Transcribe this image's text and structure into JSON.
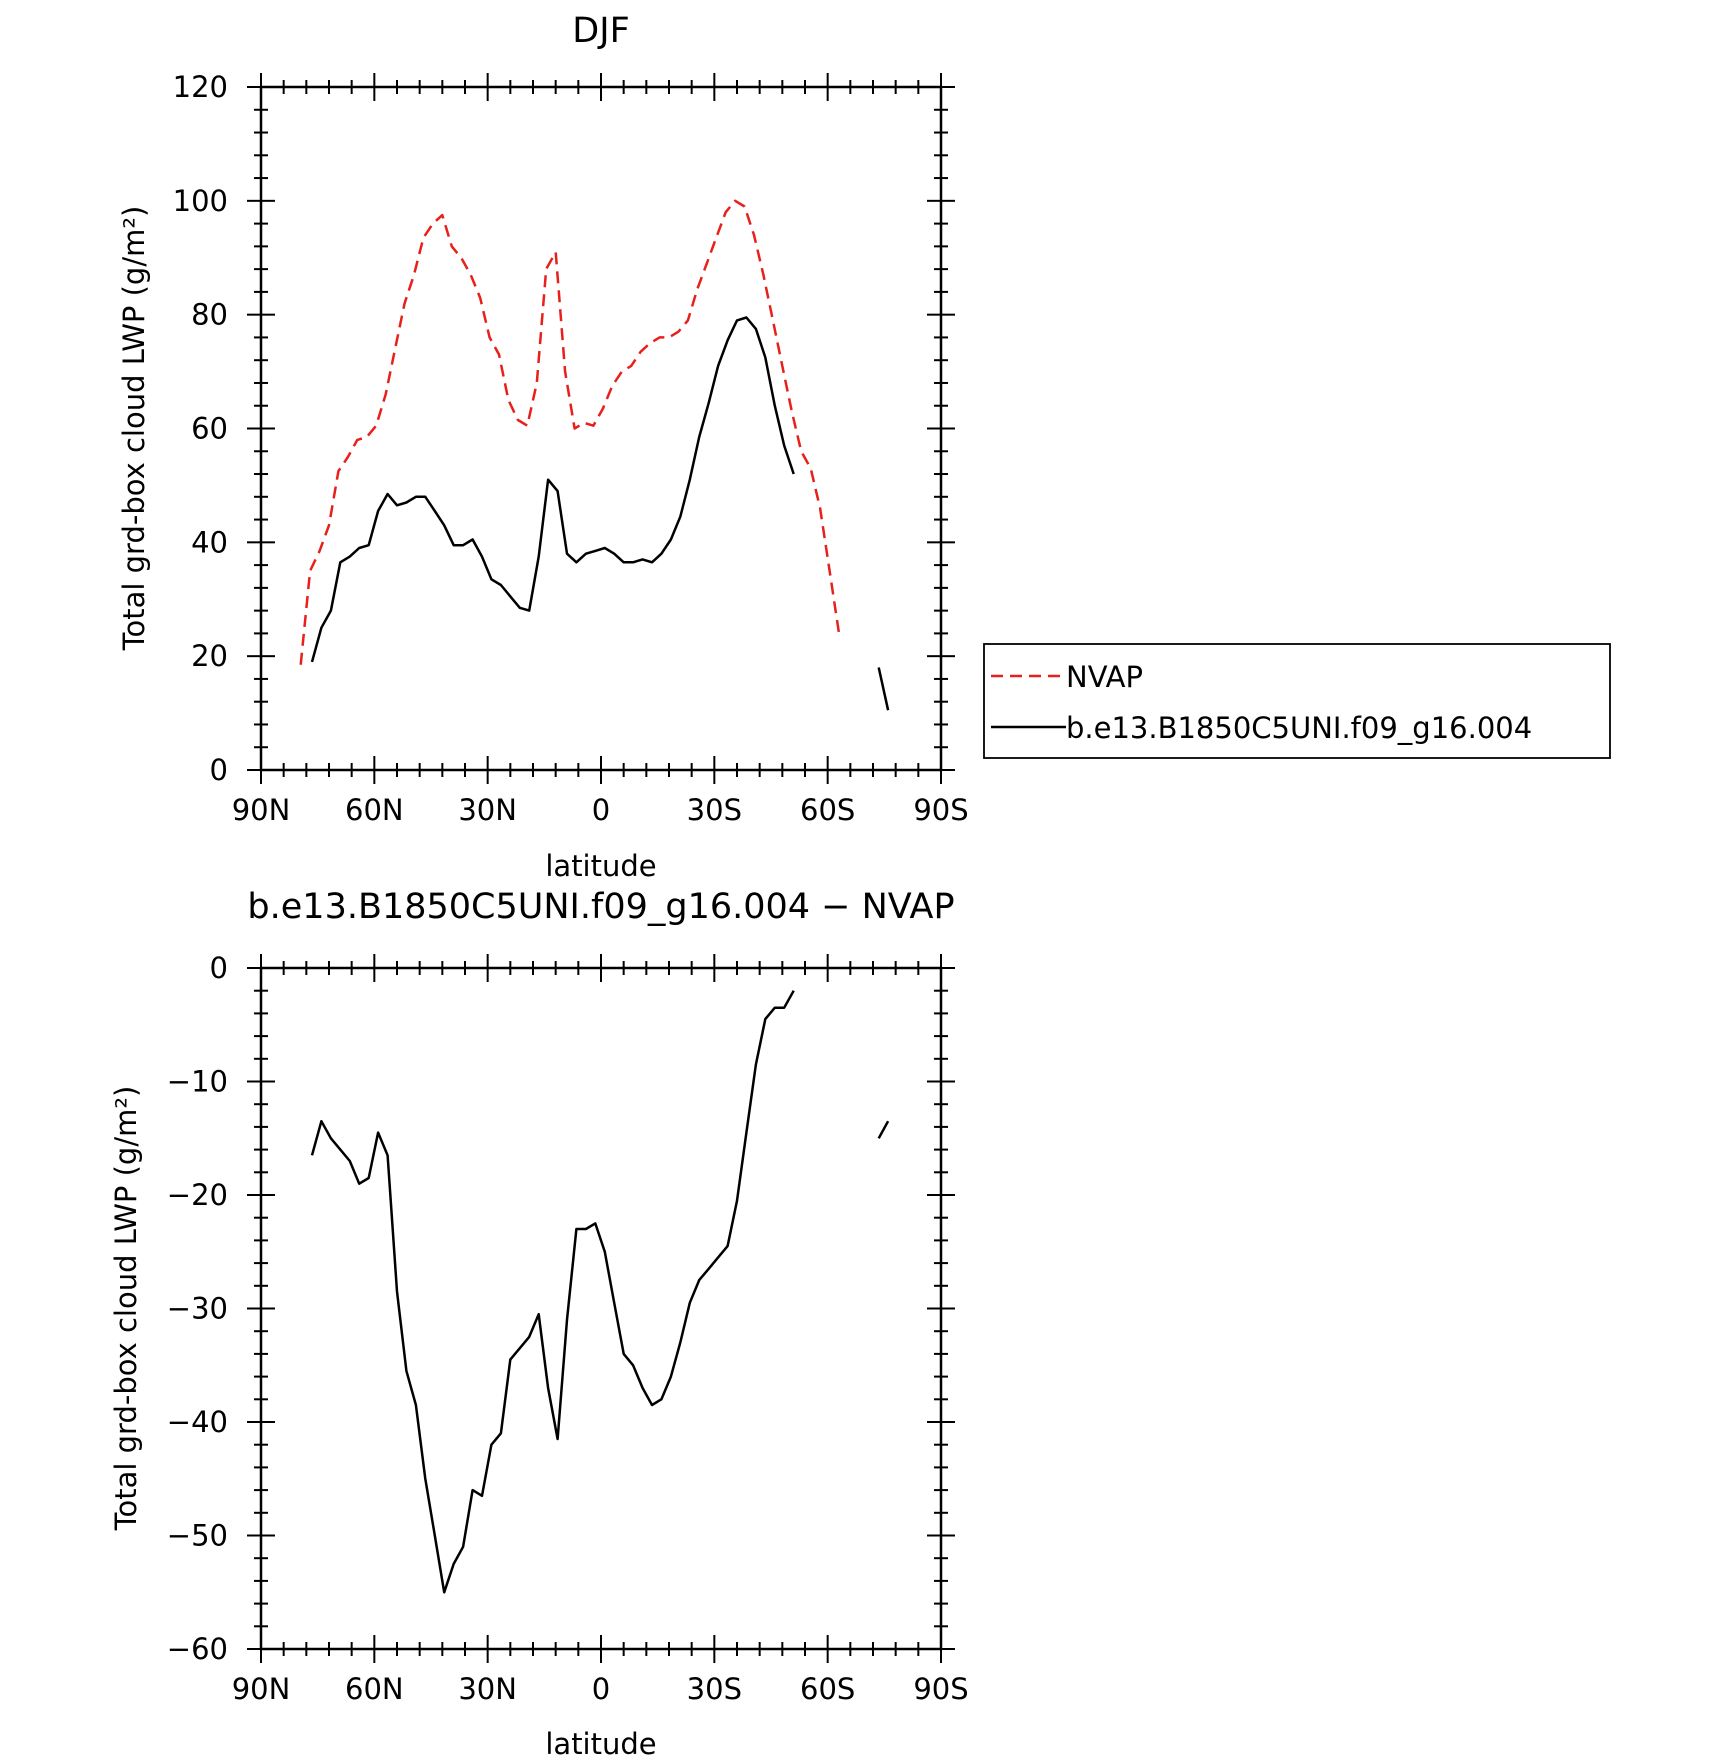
{
  "chart_data": [
    {
      "type": "line",
      "title": "DJF",
      "xlabel": "latitude",
      "ylabel": "Total grd-box cloud LWP (g/m²)",
      "xlim": [
        -90,
        90
      ],
      "ylim": [
        0,
        120
      ],
      "x_ticks": [
        -90,
        -60,
        -30,
        0,
        30,
        60,
        90
      ],
      "x_tick_labels": [
        "90N",
        "60N",
        "30N",
        "0",
        "30S",
        "60S",
        "90S"
      ],
      "y_ticks": [
        0,
        20,
        40,
        60,
        80,
        100,
        120
      ],
      "y_tick_labels": [
        "0",
        "20",
        "40",
        "60",
        "80",
        "100",
        "120"
      ],
      "legend_placement": "right",
      "series": [
        {
          "name": "NVAP",
          "color": "#e8201c",
          "dash": "dashed",
          "segments": [
            [
              [
                -79.5,
                18.5
              ],
              [
                -77,
                35
              ],
              [
                -74.5,
                38.5
              ],
              [
                -72,
                43
              ],
              [
                -69.5,
                52.5
              ],
              [
                -67,
                55
              ],
              [
                -64.5,
                58
              ],
              [
                -62,
                58.5
              ],
              [
                -59.5,
                60.5
              ],
              [
                -57,
                66
              ],
              [
                -54.5,
                74
              ],
              [
                -52,
                82
              ],
              [
                -49.5,
                87
              ],
              [
                -47,
                93.5
              ],
              [
                -44.5,
                96
              ],
              [
                -42,
                97.5
              ],
              [
                -39.5,
                92
              ],
              [
                -37,
                90
              ],
              [
                -34.5,
                87
              ],
              [
                -32,
                83
              ],
              [
                -29.5,
                76
              ],
              [
                -27,
                73
              ],
              [
                -24.5,
                65
              ],
              [
                -22,
                61.5
              ],
              [
                -19.5,
                60.5
              ],
              [
                -17,
                68
              ],
              [
                -14.5,
                88
              ],
              [
                -12,
                91
              ],
              [
                -9.5,
                70
              ],
              [
                -7,
                60
              ],
              [
                -4.5,
                61
              ],
              [
                -2,
                60.5
              ],
              [
                0.5,
                63.5
              ],
              [
                3,
                67.5
              ],
              [
                5.5,
                70
              ],
              [
                8,
                71
              ],
              [
                10.5,
                73.5
              ],
              [
                13,
                75
              ],
              [
                15.5,
                76
              ],
              [
                18,
                76
              ],
              [
                20.5,
                77
              ],
              [
                23,
                79
              ],
              [
                25.5,
                84.5
              ],
              [
                28,
                89
              ],
              [
                30.5,
                93.5
              ],
              [
                33,
                98
              ],
              [
                35.5,
                100
              ],
              [
                38,
                99
              ],
              [
                40.5,
                94
              ],
              [
                43,
                87
              ],
              [
                45.5,
                79
              ],
              [
                48,
                71
              ],
              [
                50.5,
                63
              ],
              [
                53,
                56
              ],
              [
                55.5,
                53
              ],
              [
                58,
                46
              ],
              [
                60.5,
                35
              ],
              [
                63,
                24
              ]
            ]
          ]
        },
        {
          "name": "b.e13.B1850C5UNI.f09_g16.004",
          "color": "#000000",
          "dash": "solid",
          "segments": [
            [
              [
                -76.5,
                19
              ],
              [
                -74,
                25
              ],
              [
                -71.5,
                28
              ],
              [
                -69,
                36.5
              ],
              [
                -66.5,
                37.5
              ],
              [
                -64,
                39
              ],
              [
                -61.5,
                39.5
              ],
              [
                -59,
                45.5
              ],
              [
                -56.5,
                48.5
              ],
              [
                -54,
                46.5
              ],
              [
                -51.5,
                47
              ],
              [
                -49,
                48
              ],
              [
                -46.5,
                48
              ],
              [
                -44,
                45.5
              ],
              [
                -41.5,
                43
              ],
              [
                -39,
                39.5
              ],
              [
                -36.5,
                39.5
              ],
              [
                -34,
                40.5
              ],
              [
                -31.5,
                37.5
              ],
              [
                -29,
                33.5
              ],
              [
                -26.5,
                32.5
              ],
              [
                -24,
                30.5
              ],
              [
                -21.5,
                28.5
              ],
              [
                -19,
                28
              ],
              [
                -16.5,
                37.5
              ],
              [
                -14,
                51
              ],
              [
                -11.5,
                49
              ],
              [
                -9,
                38
              ],
              [
                -6.5,
                36.5
              ],
              [
                -4,
                38
              ],
              [
                -1.5,
                38.5
              ],
              [
                1,
                39
              ],
              [
                3.5,
                38
              ],
              [
                6,
                36.5
              ],
              [
                8.5,
                36.5
              ],
              [
                11,
                37
              ],
              [
                13.5,
                36.5
              ],
              [
                16,
                38
              ],
              [
                18.5,
                40.5
              ],
              [
                21,
                44.5
              ],
              [
                23.5,
                51
              ],
              [
                26,
                58.5
              ],
              [
                28.5,
                64.5
              ],
              [
                31,
                71
              ],
              [
                33.5,
                75.5
              ],
              [
                36,
                79
              ],
              [
                38.5,
                79.5
              ],
              [
                41,
                77.5
              ],
              [
                43.5,
                72.5
              ],
              [
                46,
                64
              ],
              [
                48.5,
                57
              ],
              [
                51,
                52
              ]
            ],
            [
              [
                73.5,
                18
              ],
              [
                76,
                10.5
              ]
            ]
          ]
        }
      ]
    },
    {
      "type": "line",
      "title": "b.e13.B1850C5UNI.f09_g16.004 − NVAP",
      "xlabel": "latitude",
      "ylabel": "Total grd-box cloud LWP (g/m²)",
      "xlim": [
        -90,
        90
      ],
      "ylim": [
        -60,
        0
      ],
      "x_ticks": [
        -90,
        -60,
        -30,
        0,
        30,
        60,
        90
      ],
      "x_tick_labels": [
        "90N",
        "60N",
        "30N",
        "0",
        "30S",
        "60S",
        "90S"
      ],
      "y_ticks": [
        -60,
        -50,
        -40,
        -30,
        -20,
        -10,
        0
      ],
      "y_tick_labels": [
        "−60",
        "−50",
        "−40",
        "−30",
        "−20",
        "−10",
        "0"
      ],
      "series": [
        {
          "color": "#000000",
          "dash": "solid",
          "segments": [
            [
              [
                -76.5,
                -16.5
              ],
              [
                -74,
                -13.5
              ],
              [
                -71.5,
                -15
              ],
              [
                -69,
                -16
              ],
              [
                -66.5,
                -17
              ],
              [
                -64,
                -19
              ],
              [
                -61.5,
                -18.5
              ],
              [
                -59,
                -14.5
              ],
              [
                -56.5,
                -16.5
              ],
              [
                -54,
                -28.5
              ],
              [
                -51.5,
                -35.5
              ],
              [
                -49,
                -38.5
              ],
              [
                -46.5,
                -45
              ],
              [
                -44,
                -50
              ],
              [
                -41.5,
                -55
              ],
              [
                -39,
                -52.5
              ],
              [
                -36.5,
                -51
              ],
              [
                -34,
                -46
              ],
              [
                -31.5,
                -46.5
              ],
              [
                -29,
                -42
              ],
              [
                -26.5,
                -41
              ],
              [
                -24,
                -34.5
              ],
              [
                -21.5,
                -33.5
              ],
              [
                -19,
                -32.5
              ],
              [
                -16.5,
                -30.5
              ],
              [
                -14,
                -37
              ],
              [
                -11.5,
                -41.5
              ],
              [
                -9,
                -31
              ],
              [
                -6.5,
                -23
              ],
              [
                -4,
                -23
              ],
              [
                -1.5,
                -22.5
              ],
              [
                1,
                -25
              ],
              [
                3.5,
                -29.5
              ],
              [
                6,
                -34
              ],
              [
                8.5,
                -35
              ],
              [
                11,
                -37
              ],
              [
                13.5,
                -38.5
              ],
              [
                16,
                -38
              ],
              [
                18.5,
                -36
              ],
              [
                21,
                -33
              ],
              [
                23.5,
                -29.5
              ],
              [
                26,
                -27.5
              ],
              [
                28.5,
                -26.5
              ],
              [
                31,
                -25.5
              ],
              [
                33.5,
                -24.5
              ],
              [
                36,
                -20.5
              ],
              [
                38.5,
                -14.5
              ],
              [
                41,
                -8.5
              ],
              [
                43.5,
                -4.5
              ],
              [
                46,
                -3.5
              ],
              [
                48.5,
                -3.5
              ],
              [
                51,
                -2
              ]
            ],
            [
              [
                73.5,
                -15
              ],
              [
                76,
                -13.5
              ]
            ]
          ]
        }
      ]
    }
  ]
}
